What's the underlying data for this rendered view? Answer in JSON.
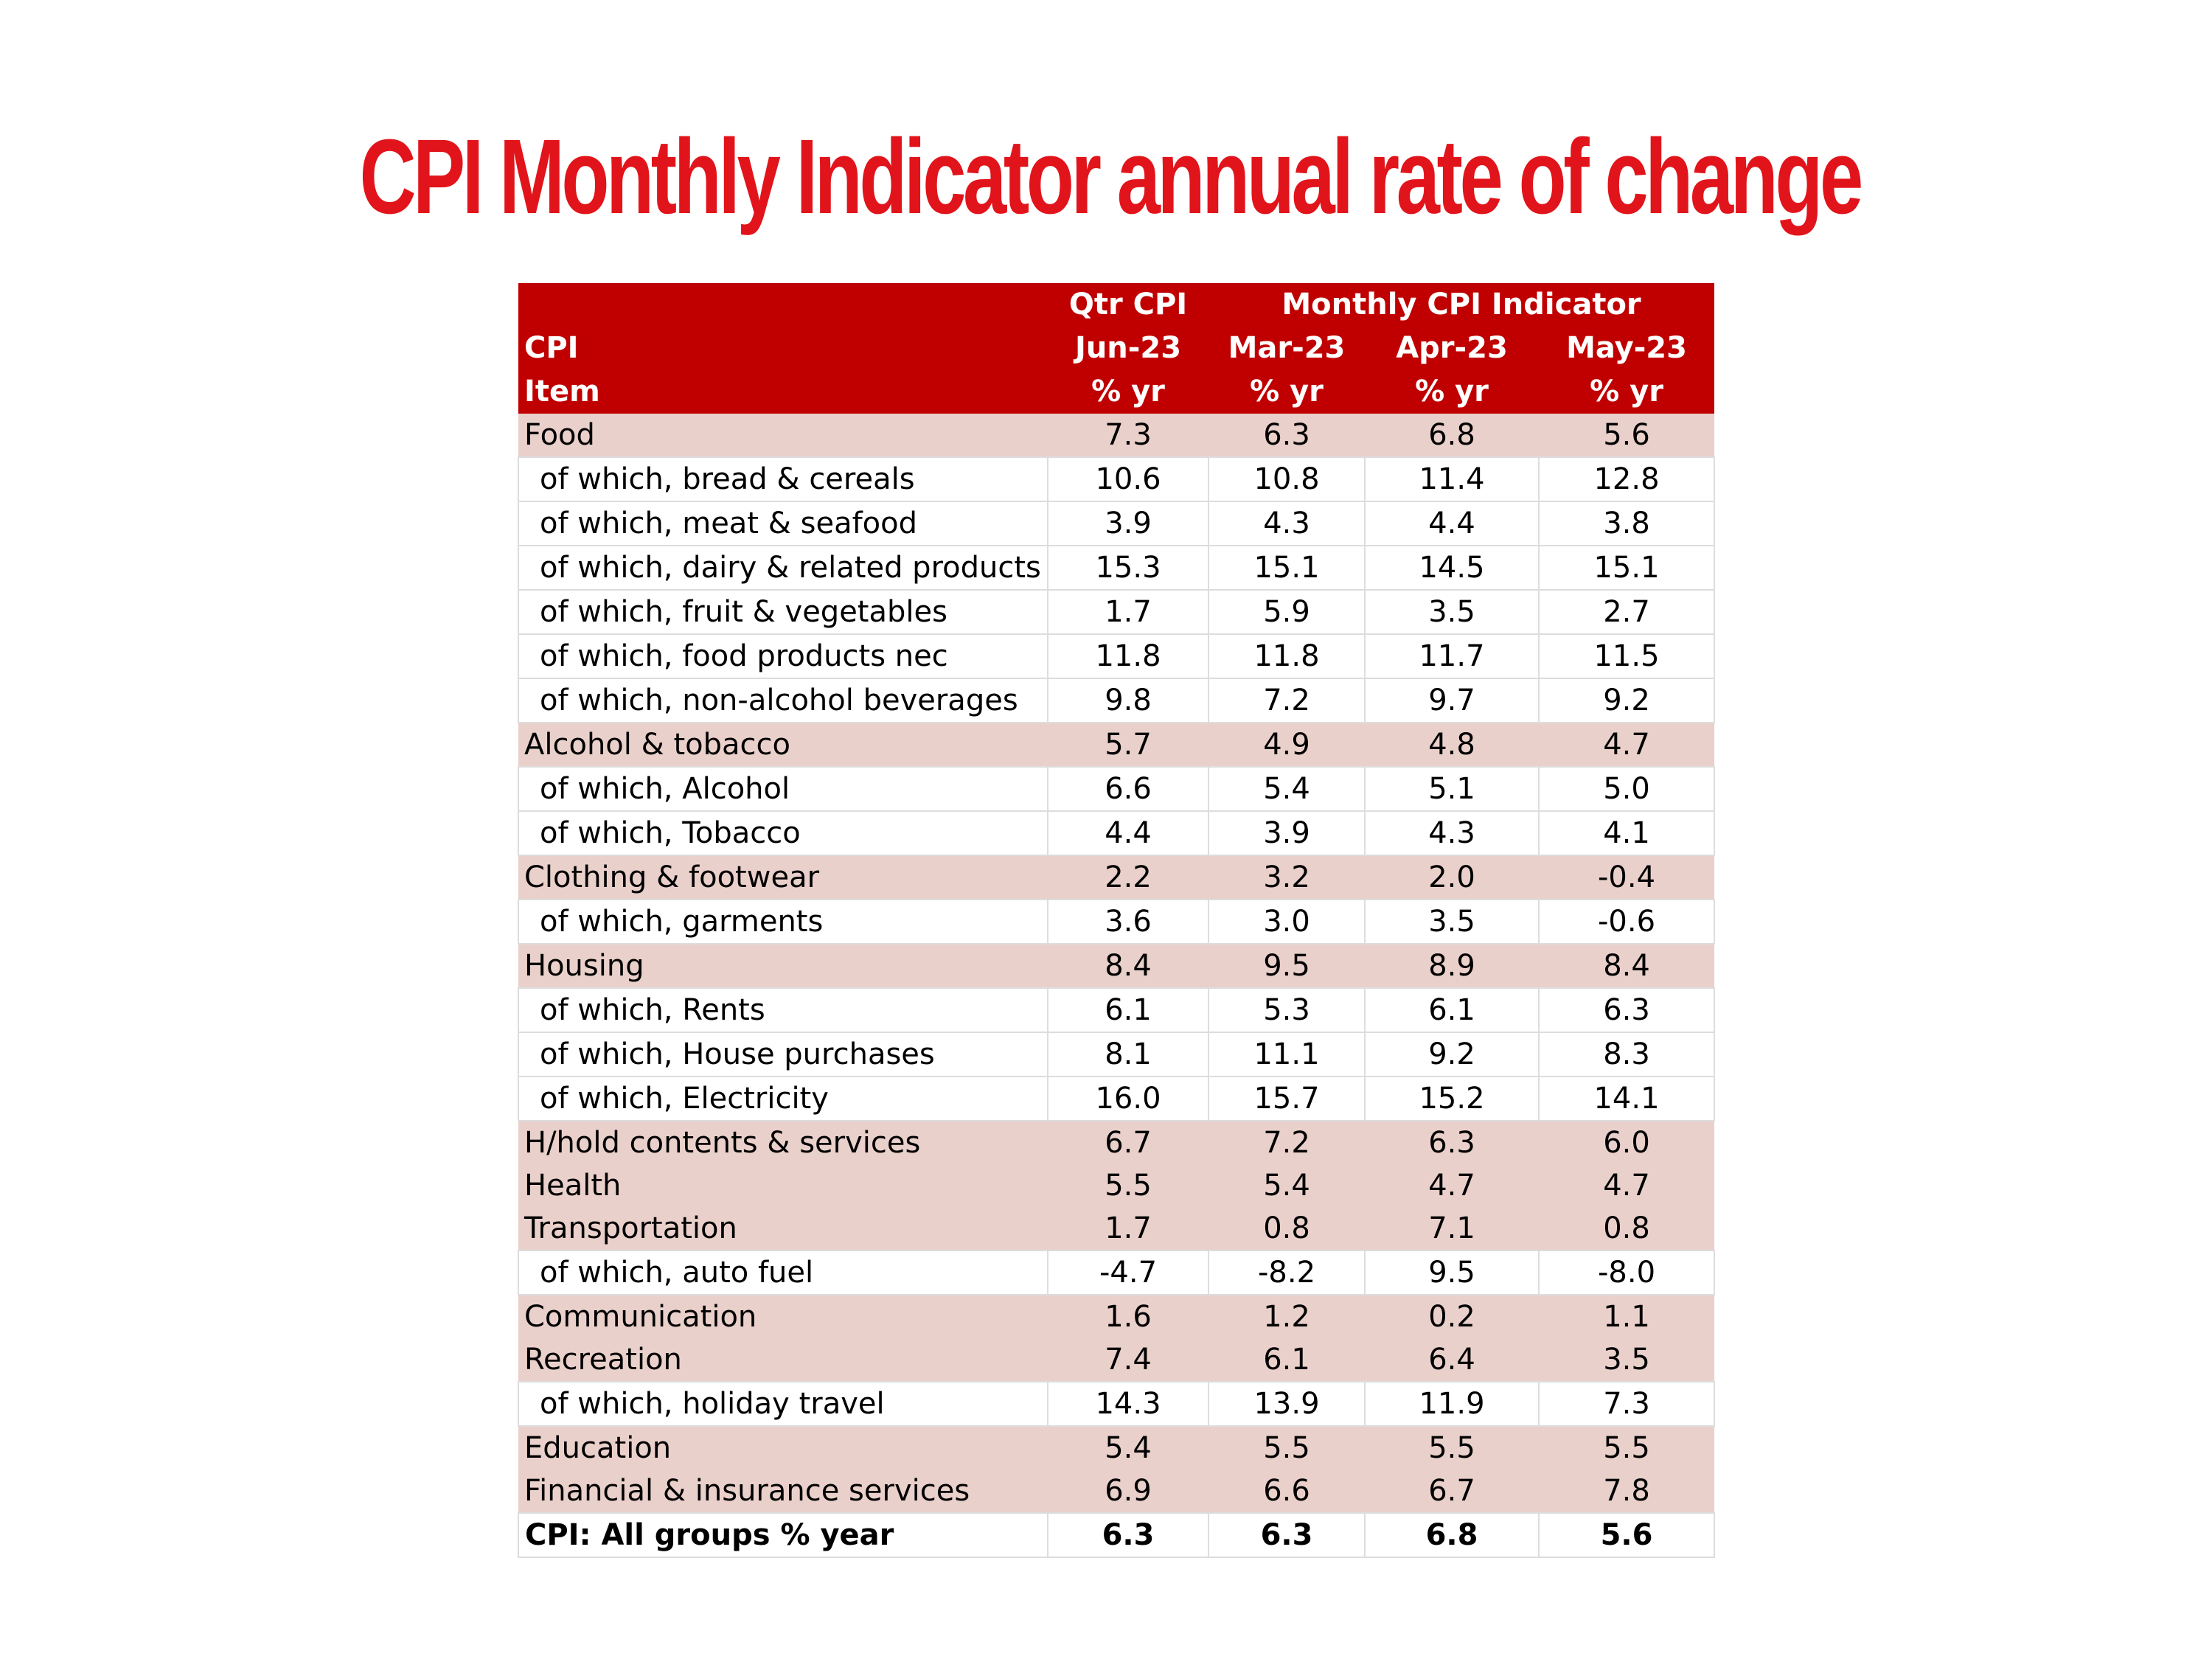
{
  "title": "CPI Monthly Indicator annual rate of change",
  "colors": {
    "title": "#e2141b",
    "header_bg": "#c00000",
    "group_row_bg": "#ead0cb",
    "subitem_row_bg": "#ffffff"
  },
  "chart_data": {
    "type": "table",
    "title": "CPI Monthly Indicator annual rate of change",
    "header_rows": [
      [
        "",
        "Qtr CPI",
        "Monthly CPI Indicator",
        "",
        ""
      ],
      [
        "CPI",
        "Jun-23",
        "Mar-23",
        "Apr-23",
        "May-23"
      ],
      [
        "Item",
        "% yr",
        "% yr",
        "% yr",
        "% yr"
      ]
    ],
    "rows": [
      {
        "item": "Food",
        "kind": "group",
        "values": [
          "7.3",
          "6.3",
          "6.8",
          "5.6"
        ]
      },
      {
        "item": "of which, bread & cereals",
        "kind": "sub",
        "values": [
          "10.6",
          "10.8",
          "11.4",
          "12.8"
        ]
      },
      {
        "item": "of which, meat & seafood",
        "kind": "sub",
        "values": [
          "3.9",
          "4.3",
          "4.4",
          "3.8"
        ]
      },
      {
        "item": "of which, dairy & related products",
        "kind": "sub",
        "values": [
          "15.3",
          "15.1",
          "14.5",
          "15.1"
        ]
      },
      {
        "item": "of which, fruit & vegetables",
        "kind": "sub",
        "values": [
          "1.7",
          "5.9",
          "3.5",
          "2.7"
        ]
      },
      {
        "item": "of which, food products nec",
        "kind": "sub",
        "values": [
          "11.8",
          "11.8",
          "11.7",
          "11.5"
        ]
      },
      {
        "item": "of which, non-alcohol beverages",
        "kind": "sub",
        "values": [
          "9.8",
          "7.2",
          "9.7",
          "9.2"
        ]
      },
      {
        "item": "Alcohol & tobacco",
        "kind": "group",
        "values": [
          "5.7",
          "4.9",
          "4.8",
          "4.7"
        ]
      },
      {
        "item": "of which, Alcohol",
        "kind": "sub",
        "values": [
          "6.6",
          "5.4",
          "5.1",
          "5.0"
        ]
      },
      {
        "item": "of which, Tobacco",
        "kind": "sub",
        "values": [
          "4.4",
          "3.9",
          "4.3",
          "4.1"
        ]
      },
      {
        "item": "Clothing & footwear",
        "kind": "group",
        "values": [
          "2.2",
          "3.2",
          "2.0",
          "-0.4"
        ]
      },
      {
        "item": "of which, garments",
        "kind": "sub",
        "values": [
          "3.6",
          "3.0",
          "3.5",
          "-0.6"
        ]
      },
      {
        "item": "Housing",
        "kind": "group",
        "values": [
          "8.4",
          "9.5",
          "8.9",
          "8.4"
        ]
      },
      {
        "item": "of which, Rents",
        "kind": "sub",
        "values": [
          "6.1",
          "5.3",
          "6.1",
          "6.3"
        ]
      },
      {
        "item": "of which, House purchases",
        "kind": "sub",
        "values": [
          "8.1",
          "11.1",
          "9.2",
          "8.3"
        ]
      },
      {
        "item": "of which, Electricity",
        "kind": "sub",
        "values": [
          "16.0",
          "15.7",
          "15.2",
          "14.1"
        ]
      },
      {
        "item": "H/hold contents & services",
        "kind": "group",
        "values": [
          "6.7",
          "7.2",
          "6.3",
          "6.0"
        ]
      },
      {
        "item": "Health",
        "kind": "group",
        "values": [
          "5.5",
          "5.4",
          "4.7",
          "4.7"
        ]
      },
      {
        "item": "Transportation",
        "kind": "group",
        "values": [
          "1.7",
          "0.8",
          "7.1",
          "0.8"
        ]
      },
      {
        "item": "of which, auto fuel",
        "kind": "sub",
        "values": [
          "-4.7",
          "-8.2",
          "9.5",
          "-8.0"
        ]
      },
      {
        "item": "Communication",
        "kind": "group",
        "values": [
          "1.6",
          "1.2",
          "0.2",
          "1.1"
        ]
      },
      {
        "item": "Recreation",
        "kind": "group",
        "values": [
          "7.4",
          "6.1",
          "6.4",
          "3.5"
        ]
      },
      {
        "item": "of which, holiday travel",
        "kind": "sub",
        "values": [
          "14.3",
          "13.9",
          "11.9",
          "7.3"
        ]
      },
      {
        "item": "Education",
        "kind": "group",
        "values": [
          "5.4",
          "5.5",
          "5.5",
          "5.5"
        ]
      },
      {
        "item": "Financial & insurance services",
        "kind": "group",
        "values": [
          "6.9",
          "6.6",
          "6.7",
          "7.8"
        ]
      },
      {
        "item": "CPI: All groups % year",
        "kind": "total",
        "values": [
          "6.3",
          "6.3",
          "6.8",
          "5.6"
        ]
      }
    ]
  }
}
